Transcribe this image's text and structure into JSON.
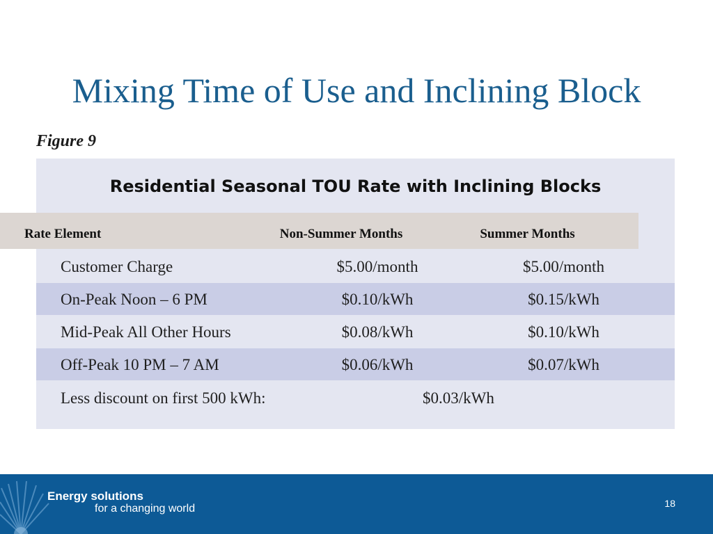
{
  "slide": {
    "title": "Mixing Time of Use and Inclining Block",
    "figure_label": "Figure 9"
  },
  "table": {
    "title": "Residential Seasonal TOU Rate with Inclining Blocks",
    "headers": [
      "Rate Element",
      "Non-Summer Months",
      "Summer Months"
    ],
    "rows": [
      [
        "Customer Charge",
        "$5.00/month",
        "$5.00/month"
      ],
      [
        "On-Peak Noon – 6 PM",
        "$0.10/kWh",
        "$0.15/kWh"
      ],
      [
        "Mid-Peak All Other Hours",
        "$0.08/kWh",
        "$0.10/kWh"
      ],
      [
        "Off-Peak 10 PM – 7 AM",
        "$0.06/kWh",
        "$0.07/kWh"
      ]
    ],
    "discount": {
      "label": "Less discount on first 500 kWh:",
      "value": "$0.03/kWh"
    }
  },
  "footer": {
    "brand_line1": "Energy solutions",
    "brand_line2": "for a changing world",
    "page_number": "18"
  },
  "colors": {
    "title": "#1a5e8e",
    "footer_bg": "#0d5a96",
    "table_bg": "#e4e6f1",
    "header_bg": "#dcd6d2",
    "shaded_row": "#c9cde6"
  }
}
